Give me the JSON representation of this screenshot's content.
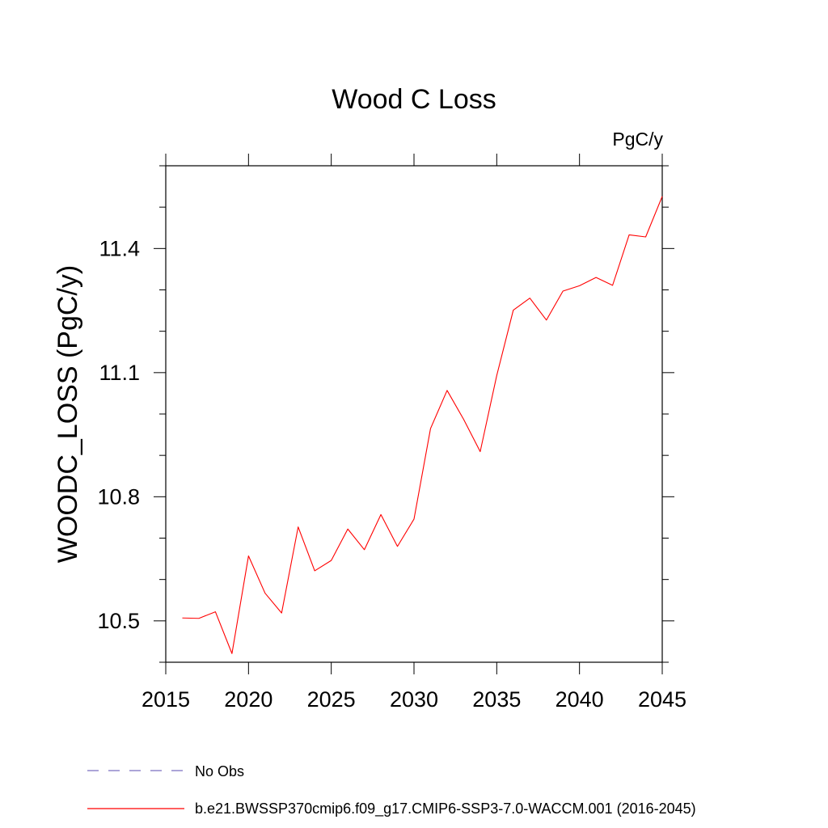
{
  "chart_data": {
    "type": "line",
    "title": "Wood C Loss",
    "units_label": "PgC/y",
    "xlabel": "",
    "ylabel": "WOODC_LOSS  (PgC/y)",
    "xlim": [
      2015,
      2045
    ],
    "ylim": [
      10.4,
      11.6
    ],
    "x_ticks": [
      2015,
      2020,
      2025,
      2030,
      2035,
      2040,
      2045
    ],
    "x_tick_labels": [
      "2015",
      "2020",
      "2025",
      "2030",
      "2035",
      "2040",
      "2045"
    ],
    "y_ticks": [
      10.5,
      10.8,
      11.1,
      11.4
    ],
    "y_tick_labels": [
      "10.5",
      "10.8",
      "11.1",
      "11.4"
    ],
    "y_minor_step": 0.1,
    "x_minor_step": 1,
    "grid": false,
    "series": [
      {
        "name": "b.e21.BWSSP370cmip6.f09_g17.CMIP6-SSP3-7.0-WACCM.001 (2016-2045)",
        "color": "#ff0000",
        "style": "solid",
        "x": [
          2016,
          2017,
          2018,
          2019,
          2020,
          2021,
          2022,
          2023,
          2024,
          2025,
          2026,
          2027,
          2028,
          2029,
          2030,
          2031,
          2032,
          2033,
          2034,
          2035,
          2036,
          2037,
          2038,
          2039,
          2040,
          2041,
          2042,
          2043,
          2044,
          2045
        ],
        "values": [
          10.507,
          10.506,
          10.522,
          10.421,
          10.657,
          10.567,
          10.519,
          10.727,
          10.621,
          10.646,
          10.722,
          10.672,
          10.757,
          10.68,
          10.746,
          10.965,
          11.057,
          10.987,
          10.909,
          11.093,
          11.251,
          11.28,
          11.227,
          11.297,
          11.31,
          11.33,
          11.311,
          11.433,
          11.428,
          11.526
        ]
      }
    ],
    "legend": {
      "placement": "bottom-left",
      "entries": [
        {
          "label": "No Obs",
          "color": "#7b6fc0",
          "style": "dashed"
        },
        {
          "label": "b.e21.BWSSP370cmip6.f09_g17.CMIP6-SSP3-7.0-WACCM.001 (2016-2045)",
          "color": "#ff0000",
          "style": "solid"
        }
      ]
    }
  }
}
